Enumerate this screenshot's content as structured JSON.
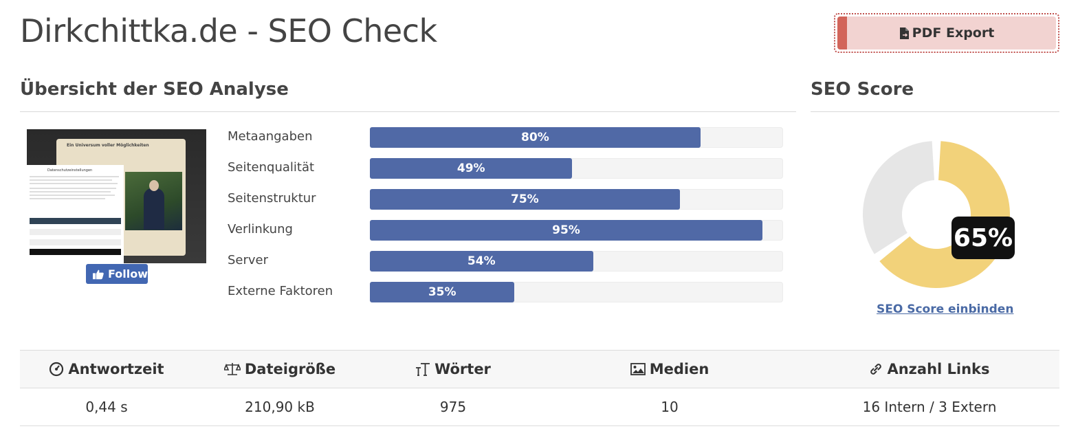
{
  "page": {
    "title": "Dirkchittka.de - SEO Check"
  },
  "toolbar": {
    "pdf_label": "PDF Export",
    "pdf_icon": "file-export-icon"
  },
  "overview": {
    "heading": "Übersicht der SEO Analyse",
    "thumbnail": {
      "modal_title": "Ein Universum voller Möglichkeiten",
      "dialog_title": "Datenschutzeinstellungen"
    },
    "follow_label": "Follow",
    "bars": [
      {
        "label": "Metaangaben",
        "value": 80,
        "text": "80%"
      },
      {
        "label": "Seitenqualität",
        "value": 49,
        "text": "49%"
      },
      {
        "label": "Seitenstruktur",
        "value": 75,
        "text": "75%"
      },
      {
        "label": "Verlinkung",
        "value": 95,
        "text": "95%"
      },
      {
        "label": "Server",
        "value": 54,
        "text": "54%"
      },
      {
        "label": "Externe Faktoren",
        "value": 35,
        "text": "35%"
      }
    ],
    "bar_color": "#5069a6"
  },
  "score": {
    "heading": "SEO Score",
    "value": 65,
    "text": "65%",
    "fill_color": "#f2d27a",
    "rest_color": "#e6e6e6",
    "embed_link": "SEO Score einbinden"
  },
  "stats": {
    "columns": [
      {
        "label": "Antwortzeit",
        "icon": "gauge-icon",
        "value": "0,44 s"
      },
      {
        "label": "Dateigröße",
        "icon": "scale-icon",
        "value": "210,90 kB"
      },
      {
        "label": "Wörter",
        "icon": "text-height-icon",
        "value": "975"
      },
      {
        "label": "Medien",
        "icon": "image-icon",
        "value": "10"
      },
      {
        "label": "Anzahl Links",
        "icon": "link-icon",
        "value": "16 Intern / 3 Extern"
      }
    ]
  }
}
